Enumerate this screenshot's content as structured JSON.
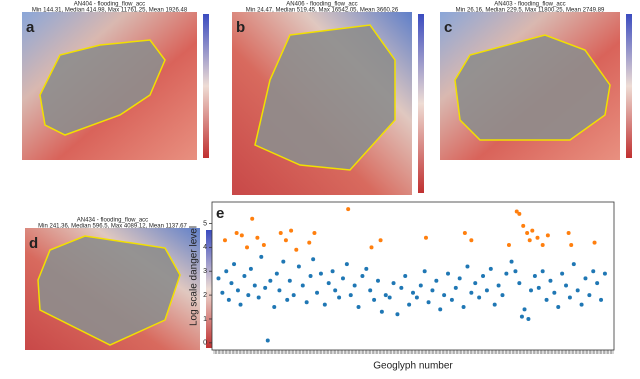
{
  "panels": [
    {
      "letter": "a",
      "title": "AN404 - flooding_flow_acc",
      "stats": "Min 144.31, Median 414.98, Max 11761.25, Mean 1926.48"
    },
    {
      "letter": "b",
      "title": "AN406 - flooding_flow_acc",
      "stats": "Min 24.47, Median 519.45, Max 16542.05, Mean 3660.26"
    },
    {
      "letter": "c",
      "title": "AN403 - flooding_flow_acc",
      "stats": "Min 26.16, Median 229.5, Max 11800.25, Mean 2749.89"
    },
    {
      "letter": "d",
      "title": "AN434 - flooding_flow_acc",
      "stats": "Min 241.36, Median 596.5, Max 4089.12, Mean 1137.67"
    }
  ],
  "chart_data": {
    "type": "scatter",
    "letter": "e",
    "ylabel": "Log scale danger level",
    "xlabel": "Geoglyph number",
    "xlim": [
      -5,
      305
    ],
    "ylim": [
      -0.3,
      5.9
    ],
    "yticks": [
      0,
      1,
      2,
      3,
      4,
      5
    ],
    "series": [
      {
        "color": "#1f77b4",
        "x": [
          0,
          3,
          6,
          8,
          10,
          12,
          15,
          17,
          20,
          23,
          25,
          28,
          31,
          33,
          36,
          38,
          40,
          43,
          45,
          47,
          50,
          53,
          55,
          58,
          62,
          65,
          68,
          71,
          73,
          76,
          79,
          82,
          85,
          88,
          90,
          93,
          96,
          99,
          102,
          105,
          108,
          111,
          114,
          117,
          120,
          123,
          126,
          129,
          132,
          135,
          138,
          141,
          144,
          147,
          150,
          153,
          156,
          159,
          162,
          165,
          168,
          171,
          174,
          177,
          180,
          183,
          186,
          189,
          192,
          195,
          198,
          201,
          204,
          207,
          210,
          213,
          216,
          219,
          222,
          226,
          229,
          232,
          234,
          236,
          239,
          241,
          244,
          247,
          250,
          253,
          256,
          259,
          262,
          265,
          268,
          271,
          274,
          277,
          280,
          283,
          286,
          289,
          292,
          295,
          298
        ],
        "values": [
          2.7,
          2.1,
          3.0,
          1.8,
          2.5,
          3.3,
          2.2,
          1.6,
          2.8,
          2.0,
          3.1,
          2.4,
          1.9,
          3.6,
          2.3,
          0.1,
          2.6,
          1.5,
          2.9,
          2.2,
          3.4,
          1.8,
          2.6,
          2.0,
          3.2,
          2.4,
          1.7,
          2.8,
          3.5,
          2.1,
          2.9,
          1.6,
          2.5,
          3.0,
          2.2,
          1.9,
          2.7,
          3.3,
          2.0,
          2.4,
          1.5,
          2.8,
          3.1,
          2.2,
          1.8,
          2.6,
          1.3,
          2.0,
          1.9,
          2.5,
          1.2,
          2.3,
          2.8,
          1.6,
          2.1,
          1.9,
          2.4,
          3.0,
          1.7,
          2.2,
          2.6,
          1.4,
          2.0,
          2.9,
          1.8,
          2.3,
          2.7,
          1.5,
          3.2,
          2.1,
          2.5,
          1.9,
          2.8,
          2.2,
          3.1,
          1.6,
          2.4,
          2.0,
          2.9,
          3.4,
          3.0,
          2.5,
          1.1,
          1.4,
          1.0,
          2.2,
          2.8,
          2.3,
          3.0,
          1.8,
          2.6,
          2.1,
          1.5,
          2.9,
          2.4,
          1.9,
          3.3,
          2.2,
          1.6,
          2.7,
          2.0,
          3.0,
          2.5,
          1.8,
          2.9
        ]
      },
      {
        "color": "#ff7f0e",
        "x": [
          5,
          14,
          18,
          22,
          26,
          30,
          35,
          48,
          52,
          56,
          60,
          70,
          74,
          100,
          118,
          125,
          160,
          190,
          195,
          224,
          230,
          232,
          235,
          238,
          240,
          242,
          246,
          250,
          254,
          270,
          272,
          290
        ],
        "values": [
          4.3,
          4.6,
          4.5,
          4.0,
          5.2,
          4.4,
          4.1,
          4.6,
          4.3,
          4.7,
          3.9,
          4.2,
          4.6,
          5.6,
          4.0,
          4.3,
          4.4,
          4.6,
          4.3,
          4.1,
          5.5,
          5.4,
          4.9,
          4.6,
          4.3,
          4.7,
          4.4,
          4.1,
          4.5,
          4.6,
          4.1,
          4.2
        ]
      }
    ]
  }
}
